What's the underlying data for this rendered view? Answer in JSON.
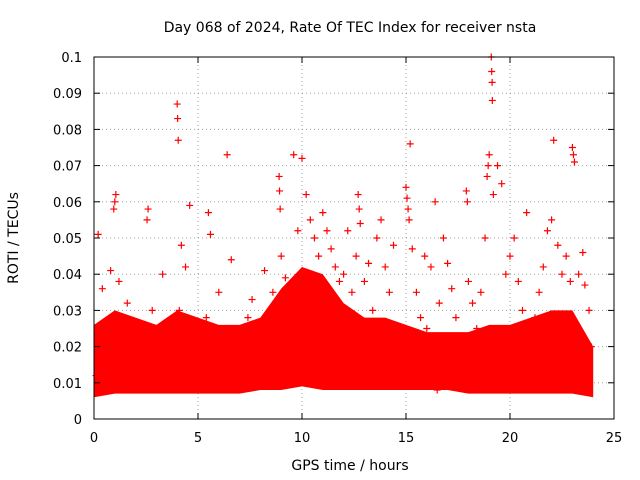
{
  "chart_data": {
    "type": "scatter",
    "title": "Day 068 of 2024, Rate Of TEC Index for receiver nsta",
    "xlabel": "GPS time / hours",
    "ylabel": "ROTI / TECUs",
    "xlim": [
      0,
      25
    ],
    "ylim": [
      0,
      0.1
    ],
    "xticks": [
      0,
      5,
      10,
      15,
      20,
      25
    ],
    "xtick_labels": [
      "0",
      "5",
      "10",
      "15",
      "20",
      "25"
    ],
    "yticks": [
      0,
      0.01,
      0.02,
      0.03,
      0.04,
      0.05,
      0.06,
      0.07,
      0.08,
      0.09,
      0.1
    ],
    "ytick_labels": [
      "0",
      "0.01",
      "0.02",
      "0.03",
      "0.04",
      "0.05",
      "0.06",
      "0.07",
      "0.08",
      "0.09",
      "0.1"
    ],
    "grid": true,
    "marker": "+",
    "color": "#ff0000",
    "series": [
      {
        "name": "ROTI",
        "points": [
          [
            0.1,
            0.012
          ],
          [
            0.3,
            0.018
          ],
          [
            0.5,
            0.022
          ],
          [
            0.7,
            0.01
          ],
          [
            0.9,
            0.015
          ],
          [
            1.1,
            0.028
          ],
          [
            1.3,
            0.013
          ],
          [
            1.5,
            0.02
          ],
          [
            1.7,
            0.011
          ],
          [
            1.9,
            0.017
          ],
          [
            0.4,
            0.036
          ],
          [
            0.8,
            0.041
          ],
          [
            1.0,
            0.06
          ],
          [
            1.05,
            0.062
          ],
          [
            0.95,
            0.058
          ],
          [
            0.2,
            0.051
          ],
          [
            1.6,
            0.032
          ],
          [
            1.2,
            0.038
          ],
          [
            2.1,
            0.014
          ],
          [
            2.3,
            0.019
          ],
          [
            2.5,
            0.024
          ],
          [
            2.6,
            0.058
          ],
          [
            2.55,
            0.055
          ],
          [
            2.8,
            0.03
          ],
          [
            3.0,
            0.016
          ],
          [
            3.2,
            0.021
          ],
          [
            3.4,
            0.012
          ],
          [
            3.6,
            0.026
          ],
          [
            3.8,
            0.018
          ],
          [
            3.3,
            0.04
          ],
          [
            4.0,
            0.087
          ],
          [
            4.02,
            0.083
          ],
          [
            4.05,
            0.077
          ],
          [
            4.2,
            0.048
          ],
          [
            4.4,
            0.042
          ],
          [
            4.1,
            0.03
          ],
          [
            4.6,
            0.059
          ],
          [
            4.8,
            0.022
          ],
          [
            4.3,
            0.015
          ],
          [
            4.9,
            0.013
          ],
          [
            5.2,
            0.018
          ],
          [
            5.4,
            0.028
          ],
          [
            5.5,
            0.057
          ],
          [
            5.6,
            0.051
          ],
          [
            5.8,
            0.02
          ],
          [
            6.0,
            0.035
          ],
          [
            6.2,
            0.025
          ],
          [
            6.4,
            0.073
          ],
          [
            6.6,
            0.044
          ],
          [
            6.8,
            0.016
          ],
          [
            6.5,
            0.012
          ],
          [
            7.0,
            0.018
          ],
          [
            7.2,
            0.022
          ],
          [
            7.4,
            0.028
          ],
          [
            7.6,
            0.033
          ],
          [
            7.8,
            0.015
          ],
          [
            8.0,
            0.02
          ],
          [
            8.2,
            0.041
          ],
          [
            8.4,
            0.026
          ],
          [
            8.6,
            0.035
          ],
          [
            8.8,
            0.012
          ],
          [
            8.9,
            0.067
          ],
          [
            8.92,
            0.063
          ],
          [
            8.95,
            0.058
          ],
          [
            9.0,
            0.045
          ],
          [
            9.2,
            0.039
          ],
          [
            9.4,
            0.03
          ],
          [
            9.6,
            0.073
          ],
          [
            9.8,
            0.052
          ],
          [
            9.7,
            0.02
          ],
          [
            9.3,
            0.014
          ],
          [
            10.0,
            0.072
          ],
          [
            10.2,
            0.062
          ],
          [
            10.4,
            0.055
          ],
          [
            10.6,
            0.05
          ],
          [
            10.8,
            0.045
          ],
          [
            10.5,
            0.04
          ],
          [
            10.7,
            0.035
          ],
          [
            10.3,
            0.03
          ],
          [
            10.9,
            0.028
          ],
          [
            10.1,
            0.022
          ],
          [
            11.0,
            0.057
          ],
          [
            11.2,
            0.052
          ],
          [
            11.4,
            0.047
          ],
          [
            11.6,
            0.042
          ],
          [
            11.8,
            0.038
          ],
          [
            11.5,
            0.033
          ],
          [
            11.3,
            0.028
          ],
          [
            11.7,
            0.025
          ],
          [
            11.1,
            0.018
          ],
          [
            11.9,
            0.015
          ],
          [
            12.0,
            0.04
          ],
          [
            12.2,
            0.052
          ],
          [
            12.4,
            0.035
          ],
          [
            12.6,
            0.045
          ],
          [
            12.7,
            0.062
          ],
          [
            12.75,
            0.058
          ],
          [
            12.8,
            0.054
          ],
          [
            12.5,
            0.025
          ],
          [
            12.3,
            0.018
          ],
          [
            12.9,
            0.012
          ],
          [
            13.0,
            0.038
          ],
          [
            13.2,
            0.043
          ],
          [
            13.4,
            0.03
          ],
          [
            13.6,
            0.05
          ],
          [
            13.8,
            0.055
          ],
          [
            14.0,
            0.042
          ],
          [
            14.2,
            0.035
          ],
          [
            14.4,
            0.048
          ],
          [
            14.6,
            0.02
          ],
          [
            14.8,
            0.015
          ],
          [
            15.0,
            0.064
          ],
          [
            15.05,
            0.061
          ],
          [
            15.1,
            0.058
          ],
          [
            15.15,
            0.055
          ],
          [
            15.2,
            0.076
          ],
          [
            15.3,
            0.047
          ],
          [
            15.5,
            0.035
          ],
          [
            15.7,
            0.028
          ],
          [
            15.9,
            0.045
          ],
          [
            15.4,
            0.018
          ],
          [
            16.0,
            0.025
          ],
          [
            16.2,
            0.042
          ],
          [
            16.4,
            0.06
          ],
          [
            16.6,
            0.032
          ],
          [
            16.8,
            0.05
          ],
          [
            17.0,
            0.043
          ],
          [
            17.2,
            0.036
          ],
          [
            17.4,
            0.028
          ],
          [
            17.6,
            0.02
          ],
          [
            17.8,
            0.015
          ],
          [
            17.9,
            0.063
          ],
          [
            17.95,
            0.06
          ],
          [
            18.0,
            0.038
          ],
          [
            18.2,
            0.032
          ],
          [
            18.4,
            0.025
          ],
          [
            18.6,
            0.035
          ],
          [
            18.8,
            0.05
          ],
          [
            18.9,
            0.067
          ],
          [
            19.0,
            0.073
          ],
          [
            18.95,
            0.07
          ],
          [
            19.1,
            0.1
          ],
          [
            19.12,
            0.096
          ],
          [
            19.14,
            0.093
          ],
          [
            19.15,
            0.088
          ],
          [
            19.2,
            0.062
          ],
          [
            19.4,
            0.07
          ],
          [
            19.6,
            0.065
          ],
          [
            19.8,
            0.04
          ],
          [
            19.3,
            0.025
          ],
          [
            19.5,
            0.018
          ],
          [
            20.0,
            0.045
          ],
          [
            20.2,
            0.05
          ],
          [
            20.4,
            0.038
          ],
          [
            20.6,
            0.03
          ],
          [
            20.8,
            0.057
          ],
          [
            21.0,
            0.022
          ],
          [
            21.2,
            0.028
          ],
          [
            21.4,
            0.035
          ],
          [
            21.6,
            0.042
          ],
          [
            21.8,
            0.052
          ],
          [
            22.0,
            0.055
          ],
          [
            22.1,
            0.077
          ],
          [
            22.3,
            0.048
          ],
          [
            22.5,
            0.04
          ],
          [
            22.7,
            0.045
          ],
          [
            22.9,
            0.038
          ],
          [
            23.0,
            0.075
          ],
          [
            23.05,
            0.073
          ],
          [
            23.1,
            0.071
          ],
          [
            23.3,
            0.04
          ],
          [
            23.5,
            0.046
          ],
          [
            23.6,
            0.037
          ],
          [
            23.8,
            0.03
          ],
          [
            23.9,
            0.02
          ],
          [
            23.4,
            0.015
          ],
          [
            23.2,
            0.012
          ],
          [
            22.6,
            0.01
          ],
          [
            21.5,
            0.011
          ],
          [
            20.5,
            0.009
          ],
          [
            16.5,
            0.008
          ]
        ]
      }
    ]
  }
}
